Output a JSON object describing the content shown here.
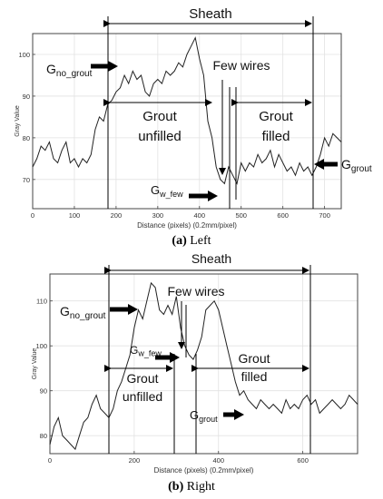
{
  "chart_data": [
    {
      "type": "line",
      "caption_tag": "(a)",
      "caption_text": "Left",
      "xlabel": "Distance (pixels) (0.2mm/pixel)",
      "ylabel": "Gray Value",
      "xlim": [
        0,
        740
      ],
      "ylim": [
        63,
        105
      ],
      "xticks": [
        0,
        100,
        200,
        300,
        400,
        500,
        600,
        700
      ],
      "yticks": [
        70,
        80,
        90,
        100
      ],
      "grid": true,
      "series": [
        {
          "x": [
            0,
            10,
            20,
            30,
            40,
            50,
            60,
            70,
            80,
            90,
            100,
            110,
            120,
            130,
            140,
            150,
            160,
            170,
            180,
            190,
            200,
            210,
            220,
            230,
            240,
            250,
            260,
            270,
            280,
            290,
            300,
            310,
            320,
            330,
            340,
            350,
            360,
            370,
            380,
            390,
            400,
            410,
            420,
            430,
            440,
            450,
            460,
            470,
            480,
            490,
            500,
            510,
            520,
            530,
            540,
            550,
            560,
            570,
            580,
            590,
            600,
            610,
            620,
            630,
            640,
            650,
            660,
            670,
            680,
            690,
            700,
            710,
            720,
            730,
            740
          ],
          "y": [
            73,
            75,
            78,
            77,
            79,
            75,
            74,
            77,
            79,
            74,
            75,
            73,
            75,
            74,
            76,
            82,
            85,
            84,
            88,
            89,
            91,
            92,
            95,
            93,
            96,
            94,
            95,
            91,
            90,
            93,
            94,
            93,
            96,
            95,
            96,
            98,
            97,
            100,
            102,
            104,
            99,
            95,
            84,
            80,
            73,
            70,
            69,
            73,
            71,
            69,
            74,
            72,
            74,
            73,
            76,
            74,
            75,
            77,
            73,
            76,
            74,
            72,
            73,
            71,
            74,
            72,
            73,
            71,
            73,
            76,
            80,
            78,
            81,
            80,
            79
          ]
        }
      ],
      "annotations": {
        "sheath": "Sheath",
        "g_no_grout": "G",
        "g_no_grout_sub": "no_grout",
        "few_wires": "Few wires",
        "grout_unfilled_1": "Grout",
        "grout_unfilled_2": "unfilled",
        "grout_filled_1": "Grout",
        "grout_filled_2": "filled",
        "g_w_few": "G",
        "g_w_few_sub": "w_few",
        "g_grout": "G",
        "g_grout_sub": "grout"
      }
    },
    {
      "type": "line",
      "caption_tag": "(b)",
      "caption_text": "Right",
      "xlabel": "Distance (pixels) (0.2mm/pixel)",
      "ylabel": "Gray Value",
      "xlim": [
        0,
        730
      ],
      "ylim": [
        76,
        116
      ],
      "xticks": [
        0,
        200,
        400,
        600
      ],
      "yticks": [
        80,
        90,
        100,
        110
      ],
      "grid": true,
      "series": [
        {
          "x": [
            0,
            10,
            20,
            30,
            40,
            50,
            60,
            70,
            80,
            90,
            100,
            110,
            120,
            130,
            140,
            150,
            160,
            170,
            180,
            190,
            200,
            210,
            220,
            230,
            240,
            250,
            260,
            270,
            280,
            290,
            300,
            310,
            320,
            330,
            340,
            350,
            360,
            370,
            380,
            390,
            400,
            410,
            420,
            430,
            440,
            450,
            460,
            470,
            480,
            490,
            500,
            510,
            520,
            530,
            540,
            550,
            560,
            570,
            580,
            590,
            600,
            610,
            620,
            630,
            640,
            650,
            660,
            670,
            680,
            690,
            700,
            710,
            720,
            730
          ],
          "y": [
            78,
            82,
            84,
            80,
            79,
            78,
            77,
            80,
            83,
            84,
            87,
            89,
            86,
            85,
            84,
            86,
            90,
            92,
            95,
            98,
            104,
            108,
            106,
            110,
            114,
            113,
            108,
            107,
            109,
            107,
            111,
            104,
            100,
            98,
            97,
            99,
            102,
            108,
            109,
            110,
            108,
            104,
            100,
            96,
            92,
            89,
            90,
            88,
            87,
            86,
            88,
            87,
            86,
            87,
            86,
            85,
            88,
            86,
            87,
            86,
            88,
            89,
            87,
            88,
            85,
            86,
            87,
            88,
            87,
            86,
            87,
            89,
            88,
            87
          ]
        }
      ],
      "annotations": {
        "sheath": "Sheath",
        "g_no_grout": "G",
        "g_no_grout_sub": "no_grout",
        "few_wires": "Few wires",
        "g_w_few": "G",
        "g_w_few_sub": "w_few",
        "grout_unfilled_1": "Grout",
        "grout_unfilled_2": "unfilled",
        "grout_filled_1": "Grout",
        "grout_filled_2": "filled",
        "g_grout": "G",
        "g_grout_sub": "grout"
      }
    }
  ]
}
